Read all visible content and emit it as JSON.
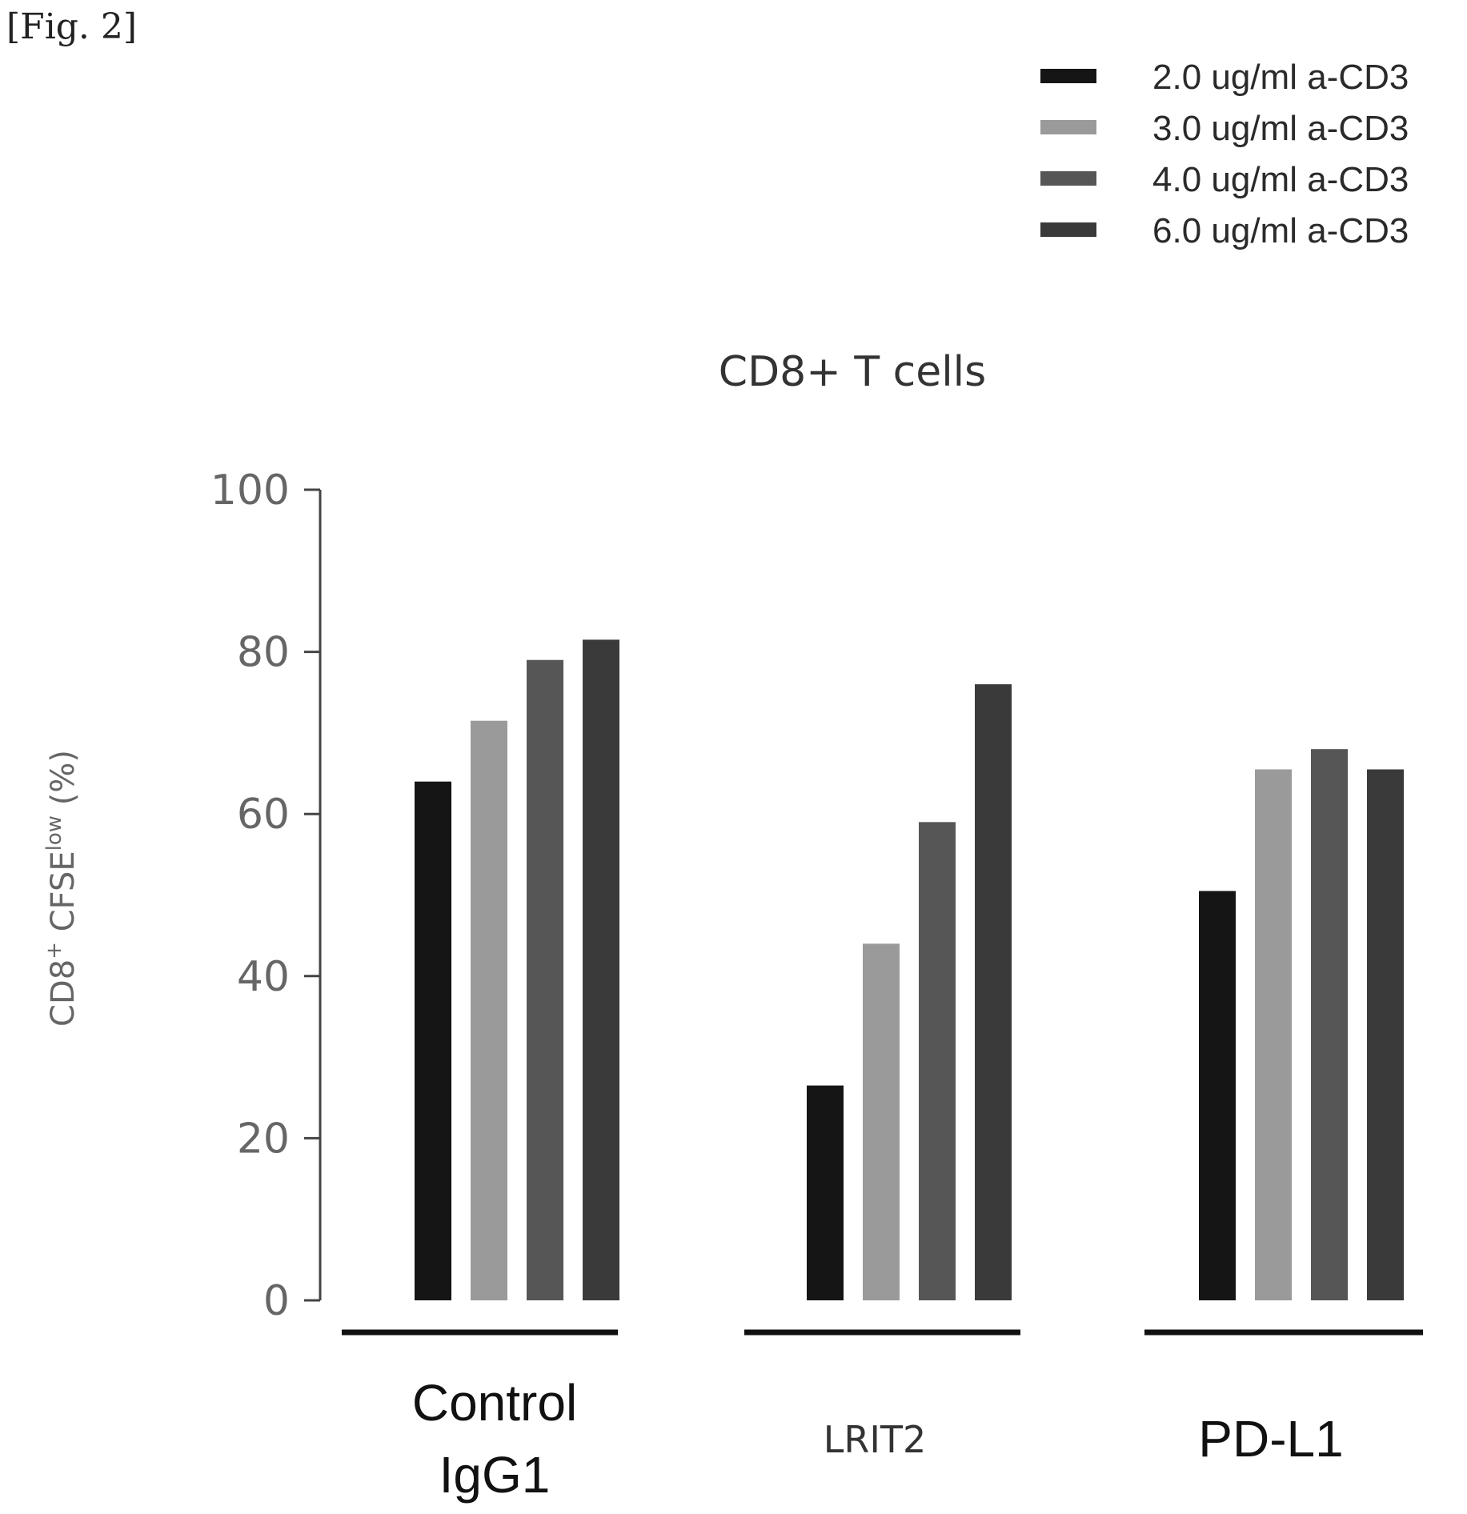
{
  "fig_label": "[Fig. 2]",
  "colors": {
    "series": [
      "#151515",
      "#9a9a9a",
      "#565656",
      "#3a3a3a"
    ],
    "axis": "#444444",
    "baseline": "#111111"
  },
  "chart_data": {
    "type": "bar",
    "title": "CD8+ T cells",
    "ylabel_main": "CD8",
    "ylabel_sup1": "+",
    "ylabel_mid": " CFSE",
    "ylabel_sup2": "low",
    "ylabel_end": " (%)",
    "ylim": [
      0,
      100
    ],
    "yticks": [
      "0",
      "20",
      "40",
      "60",
      "80",
      "100"
    ],
    "categories": [
      {
        "line1": "Control",
        "line2": "IgG1"
      },
      {
        "line1": "LRIT2",
        "line2": ""
      },
      {
        "line1": "PD-L1",
        "line2": ""
      }
    ],
    "series": [
      {
        "name": "2.0 ug/ml  a-CD3",
        "values": [
          64,
          26.5,
          50.5
        ]
      },
      {
        "name": "3.0 ug/ml  a-CD3",
        "values": [
          71.5,
          44,
          65.5
        ]
      },
      {
        "name": "4.0 ug/ml  a-CD3",
        "values": [
          79,
          59,
          68
        ]
      },
      {
        "name": "6.0 ug/ml  a-CD3",
        "values": [
          81.5,
          76,
          65.5
        ]
      }
    ],
    "legend_position": "top-right",
    "grid": false
  }
}
